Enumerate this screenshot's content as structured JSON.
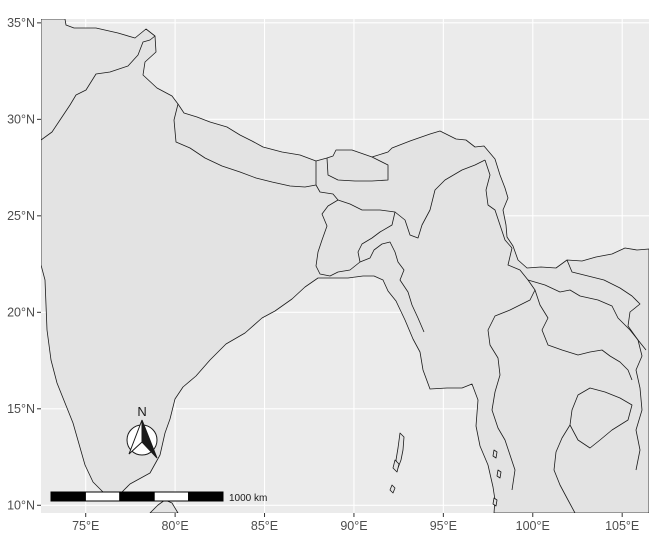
{
  "map": {
    "x_axis": {
      "labels": [
        "75°E",
        "80°E",
        "85°E",
        "90°E",
        "95°E",
        "100°E",
        "105°E"
      ],
      "values": [
        75,
        80,
        85,
        90,
        95,
        100,
        105
      ],
      "range": [
        72.5,
        106.5
      ]
    },
    "y_axis": {
      "labels": [
        "10°N",
        "15°N",
        "20°N",
        "25°N",
        "30°N",
        "35°N"
      ],
      "values": [
        10,
        15,
        20,
        25,
        30,
        35
      ],
      "range": [
        9.6,
        35.2
      ]
    },
    "colors": {
      "land": "#e3e3e3",
      "sea": "#ebebeb",
      "gridline": "#ffffff",
      "border": "#1a1a1a"
    },
    "north_arrow": {
      "label": "N",
      "placement": "bottom-left"
    },
    "scale_bar": {
      "label": "1000 km",
      "segments": 5,
      "placement": "bottom-left"
    }
  }
}
